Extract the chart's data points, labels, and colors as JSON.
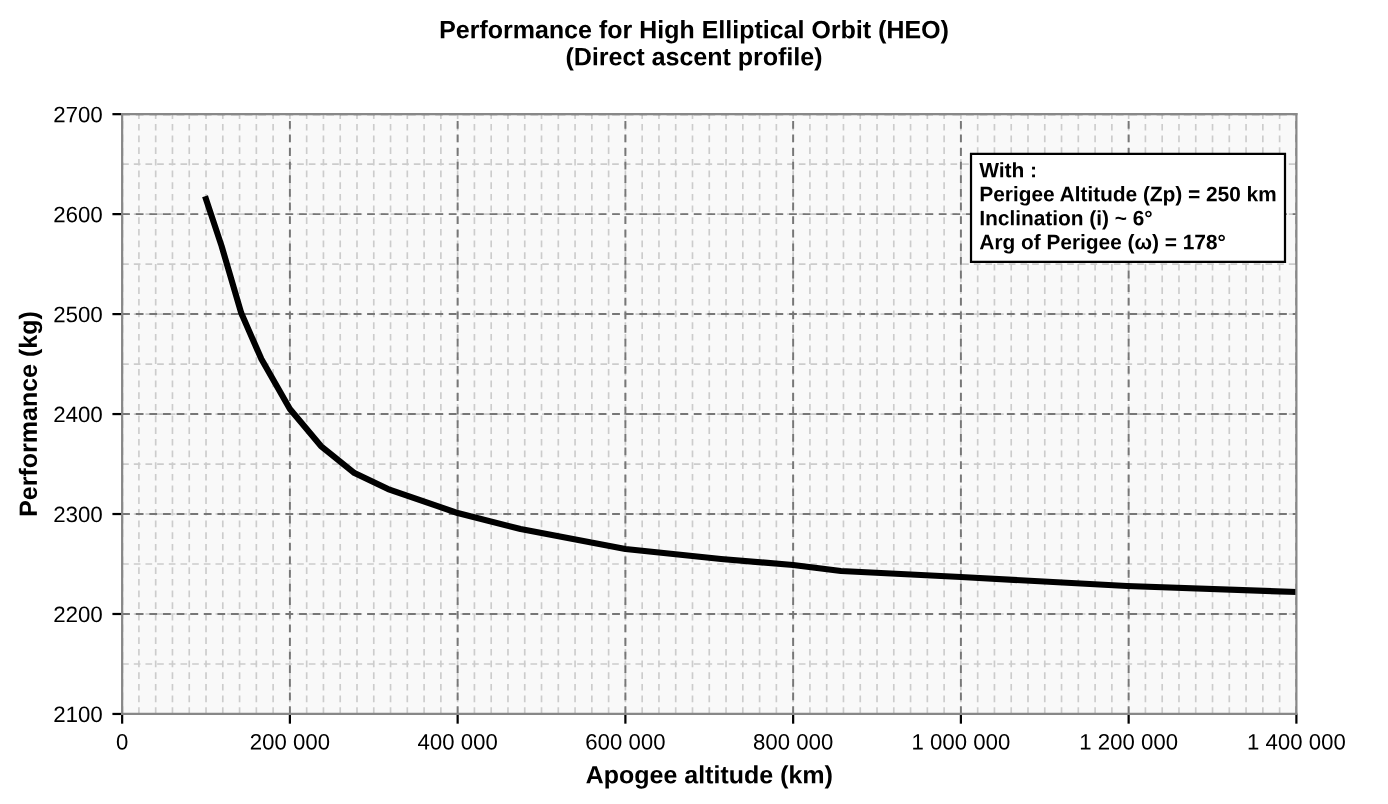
{
  "chart_data": {
    "type": "line",
    "title": "Performance for High Elliptical Orbit (HEO)\n(Direct ascent profile)",
    "xlabel": "Apogee altitude (km)",
    "ylabel": "Performance (kg)",
    "x": [
      100000,
      118600,
      142000,
      166000,
      200000,
      237000,
      277000,
      317000,
      400000,
      475000,
      600000,
      714000,
      800000,
      857000,
      1000000,
      1198000,
      1399000
    ],
    "series": [
      {
        "color": "#000000",
        "values": [
          2615,
          2568,
          2501,
          2455,
          2405,
          2368,
          2341,
          2325,
          2301,
          2285,
          2265,
          2255,
          2249,
          2243,
          2237,
          2228,
          2222
        ]
      }
    ],
    "xlim": [
      0,
      1400000
    ],
    "ylim": [
      2100,
      2700
    ],
    "xticks": [
      0,
      {
        "value": 200000,
        "label": "200 000"
      },
      {
        "value": 400000,
        "label": "400 000"
      },
      {
        "value": 600000,
        "label": "600 000"
      },
      {
        "value": 800000,
        "label": "800 000"
      },
      {
        "value": 1000000,
        "label": "1 000 000"
      },
      {
        "value": 1200000,
        "label": "1 200 000"
      },
      {
        "value": 1400000,
        "label": "1 400 000"
      }
    ],
    "yticks": [
      2100,
      2200,
      2300,
      2400,
      2500,
      2600,
      2700
    ],
    "grid": true,
    "marker": "none",
    "line_style": "solid",
    "annotations": [
      "With :\nPerigee Altitude (Zp) = 250 km\nInclination (i) ~ 6°\nArg of Perigee (ω) = 178°"
    ]
  }
}
